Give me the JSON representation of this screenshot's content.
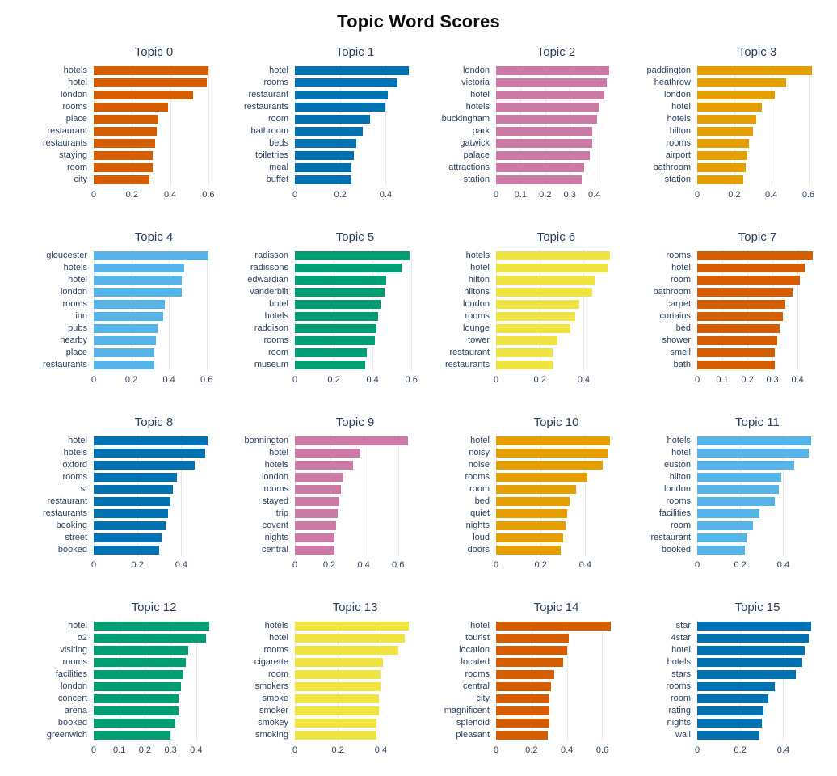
{
  "title": "Topic Word Scores",
  "chart_data": {
    "type": "bar",
    "orientation": "horizontal",
    "grid_layout": {
      "rows": 4,
      "cols": 4
    },
    "background": "#ffffff",
    "text_color": "#2a3f5f",
    "gridline_color": "#e7e7e7",
    "palette_cycle": [
      "#D55E00",
      "#0072B2",
      "#CC79A7",
      "#E69F00",
      "#56B4E9",
      "#009E73",
      "#F0E442"
    ],
    "subplots": [
      {
        "title": "Topic 0",
        "color": "#D55E00",
        "words": [
          "hotels",
          "hotel",
          "london",
          "rooms",
          "place",
          "restaurant",
          "restaurants",
          "staying",
          "room",
          "city"
        ],
        "values": [
          0.6,
          0.59,
          0.52,
          0.39,
          0.34,
          0.33,
          0.32,
          0.31,
          0.31,
          0.29
        ],
        "xticks": [
          0,
          0.2,
          0.4,
          0.6
        ],
        "xmax": 0.63
      },
      {
        "title": "Topic 1",
        "color": "#0072B2",
        "words": [
          "hotel",
          "rooms",
          "restaurant",
          "restaurants",
          "room",
          "bathroom",
          "beds",
          "toiletries",
          "meal",
          "buffet"
        ],
        "values": [
          0.5,
          0.45,
          0.41,
          0.4,
          0.33,
          0.3,
          0.27,
          0.26,
          0.25,
          0.25
        ],
        "xticks": [
          0,
          0.2,
          0.4
        ],
        "xmax": 0.53
      },
      {
        "title": "Topic 2",
        "color": "#CC79A7",
        "words": [
          "london",
          "victoria",
          "hotel",
          "hotels",
          "buckingham",
          "park",
          "gatwick",
          "palace",
          "attractions",
          "station"
        ],
        "values": [
          0.46,
          0.45,
          0.44,
          0.42,
          0.41,
          0.39,
          0.39,
          0.38,
          0.36,
          0.35
        ],
        "xticks": [
          0,
          0.1,
          0.2,
          0.3,
          0.4
        ],
        "xmax": 0.49
      },
      {
        "title": "Topic 3",
        "color": "#E69F00",
        "words": [
          "paddington",
          "heathrow",
          "london",
          "hotel",
          "hotels",
          "hilton",
          "rooms",
          "airport",
          "bathroom",
          "station"
        ],
        "values": [
          0.62,
          0.48,
          0.42,
          0.35,
          0.32,
          0.3,
          0.28,
          0.27,
          0.26,
          0.25
        ],
        "xticks": [
          0,
          0.2,
          0.4,
          0.6
        ],
        "xmax": 0.65
      },
      {
        "title": "Topic 4",
        "color": "#56B4E9",
        "words": [
          "gloucester",
          "hotels",
          "hotel",
          "london",
          "rooms",
          "inn",
          "pubs",
          "nearby",
          "place",
          "restaurants"
        ],
        "values": [
          0.61,
          0.48,
          0.47,
          0.47,
          0.38,
          0.37,
          0.34,
          0.33,
          0.32,
          0.32
        ],
        "xticks": [
          0,
          0.2,
          0.4,
          0.6
        ],
        "xmax": 0.64
      },
      {
        "title": "Topic 5",
        "color": "#009E73",
        "words": [
          "radisson",
          "radissons",
          "edwardian",
          "vanderbilt",
          "hotel",
          "hotels",
          "raddison",
          "rooms",
          "room",
          "museum"
        ],
        "values": [
          0.59,
          0.55,
          0.47,
          0.46,
          0.44,
          0.43,
          0.42,
          0.41,
          0.37,
          0.36
        ],
        "xticks": [
          0,
          0.2,
          0.4,
          0.6
        ],
        "xmax": 0.62
      },
      {
        "title": "Topic 6",
        "color": "#F0E442",
        "words": [
          "hotels",
          "hotel",
          "hilton",
          "hiltons",
          "london",
          "rooms",
          "lounge",
          "tower",
          "restaurant",
          "restaurants"
        ],
        "values": [
          0.52,
          0.51,
          0.45,
          0.44,
          0.38,
          0.36,
          0.34,
          0.28,
          0.26,
          0.26
        ],
        "xticks": [
          0,
          0.2,
          0.4
        ],
        "xmax": 0.55
      },
      {
        "title": "Topic 7",
        "color": "#D55E00",
        "words": [
          "rooms",
          "hotel",
          "room",
          "bathroom",
          "carpet",
          "curtains",
          "bed",
          "shower",
          "smell",
          "bath"
        ],
        "values": [
          0.46,
          0.43,
          0.41,
          0.38,
          0.35,
          0.34,
          0.33,
          0.32,
          0.31,
          0.31
        ],
        "xticks": [
          0,
          0.1,
          0.2,
          0.3,
          0.4
        ],
        "xmax": 0.48
      },
      {
        "title": "Topic 8",
        "color": "#0072B2",
        "words": [
          "hotel",
          "hotels",
          "oxford",
          "rooms",
          "st",
          "restaurant",
          "restaurants",
          "booking",
          "street",
          "booked"
        ],
        "values": [
          0.52,
          0.51,
          0.46,
          0.38,
          0.36,
          0.35,
          0.34,
          0.33,
          0.31,
          0.3
        ],
        "xticks": [
          0,
          0.2,
          0.4
        ],
        "xmax": 0.55
      },
      {
        "title": "Topic 9",
        "color": "#CC79A7",
        "words": [
          "bonnington",
          "hotel",
          "hotels",
          "london",
          "rooms",
          "stayed",
          "trip",
          "covent",
          "nights",
          "central"
        ],
        "values": [
          0.66,
          0.38,
          0.34,
          0.28,
          0.27,
          0.26,
          0.25,
          0.24,
          0.23,
          0.23
        ],
        "xticks": [
          0,
          0.2,
          0.4,
          0.6
        ],
        "xmax": 0.7
      },
      {
        "title": "Topic 10",
        "color": "#E69F00",
        "words": [
          "hotel",
          "noisy",
          "noise",
          "rooms",
          "room",
          "bed",
          "quiet",
          "nights",
          "loud",
          "doors"
        ],
        "values": [
          0.51,
          0.5,
          0.48,
          0.41,
          0.36,
          0.33,
          0.32,
          0.31,
          0.3,
          0.29
        ],
        "xticks": [
          0,
          0.2,
          0.4
        ],
        "xmax": 0.54
      },
      {
        "title": "Topic 11",
        "color": "#56B4E9",
        "words": [
          "hotels",
          "hotel",
          "euston",
          "hilton",
          "london",
          "rooms",
          "facilities",
          "room",
          "restaurant",
          "booked"
        ],
        "values": [
          0.53,
          0.52,
          0.45,
          0.39,
          0.38,
          0.36,
          0.29,
          0.26,
          0.23,
          0.22
        ],
        "xticks": [
          0,
          0.2,
          0.4
        ],
        "xmax": 0.56
      },
      {
        "title": "Topic 12",
        "color": "#009E73",
        "words": [
          "hotel",
          "o2",
          "visiting",
          "rooms",
          "facilities",
          "london",
          "concert",
          "arena",
          "booked",
          "greenwich"
        ],
        "values": [
          0.45,
          0.44,
          0.37,
          0.36,
          0.35,
          0.34,
          0.33,
          0.33,
          0.32,
          0.3
        ],
        "xticks": [
          0,
          0.1,
          0.2,
          0.3,
          0.4
        ],
        "xmax": 0.47
      },
      {
        "title": "Topic 13",
        "color": "#F0E442",
        "words": [
          "hotels",
          "hotel",
          "rooms",
          "cigarette",
          "room",
          "smokers",
          "smoke",
          "smoker",
          "smokey",
          "smoking"
        ],
        "values": [
          0.53,
          0.51,
          0.48,
          0.41,
          0.4,
          0.4,
          0.39,
          0.39,
          0.38,
          0.38
        ],
        "xticks": [
          0,
          0.2,
          0.4
        ],
        "xmax": 0.56
      },
      {
        "title": "Topic 14",
        "color": "#D55E00",
        "words": [
          "hotel",
          "tourist",
          "location",
          "located",
          "rooms",
          "central",
          "city",
          "magnificent",
          "splendid",
          "pleasant"
        ],
        "values": [
          0.65,
          0.41,
          0.4,
          0.38,
          0.33,
          0.31,
          0.3,
          0.3,
          0.3,
          0.29
        ],
        "xticks": [
          0,
          0.2,
          0.4,
          0.6
        ],
        "xmax": 0.68
      },
      {
        "title": "Topic 15",
        "color": "#0072B2",
        "words": [
          "star",
          "4star",
          "hotel",
          "hotels",
          "stars",
          "rooms",
          "room",
          "rating",
          "nights",
          "wall"
        ],
        "values": [
          0.53,
          0.52,
          0.5,
          0.49,
          0.46,
          0.36,
          0.33,
          0.31,
          0.3,
          0.29
        ],
        "xticks": [
          0,
          0.2,
          0.4
        ],
        "xmax": 0.56
      }
    ]
  }
}
